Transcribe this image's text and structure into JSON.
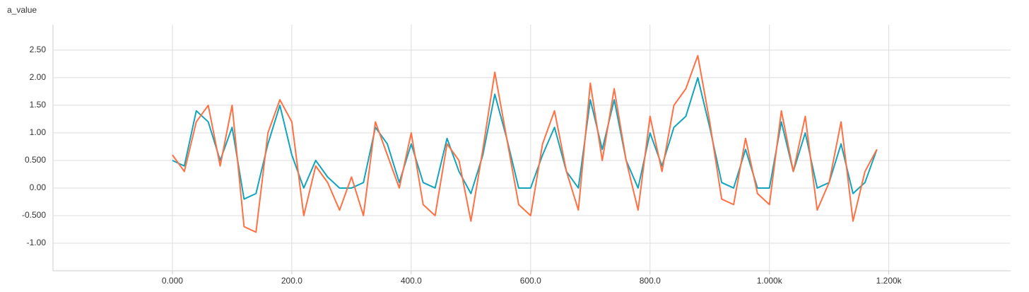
{
  "chart_data": {
    "type": "line",
    "title": "a_value",
    "x": [
      0,
      20,
      40,
      60,
      80,
      100,
      120,
      140,
      160,
      180,
      200,
      220,
      240,
      260,
      280,
      300,
      320,
      340,
      360,
      380,
      400,
      420,
      440,
      460,
      480,
      500,
      520,
      540,
      560,
      580,
      600,
      620,
      640,
      660,
      680,
      700,
      720,
      740,
      760,
      780,
      800,
      820,
      840,
      860,
      880,
      900,
      920,
      940,
      960,
      980,
      1000,
      1020,
      1040,
      1060,
      1080,
      1100,
      1120,
      1140,
      1160,
      1180
    ],
    "series": [
      {
        "color": "#12a4bd",
        "values": [
          0.5,
          0.4,
          1.4,
          1.2,
          0.5,
          1.1,
          -0.2,
          -0.1,
          0.8,
          1.5,
          0.6,
          0.0,
          0.5,
          0.2,
          0.0,
          0.0,
          0.1,
          1.1,
          0.8,
          0.1,
          0.8,
          0.1,
          0.0,
          0.9,
          0.3,
          -0.1,
          0.6,
          1.7,
          0.9,
          0.0,
          0.0,
          0.6,
          1.1,
          0.3,
          0.0,
          1.6,
          0.7,
          1.6,
          0.5,
          0.0,
          1.0,
          0.4,
          1.1,
          1.3,
          2.0,
          1.1,
          0.1,
          0.0,
          0.7,
          0.0,
          0.0,
          1.2,
          0.3,
          1.0,
          0.0,
          0.1,
          0.8,
          -0.1,
          0.1,
          0.7
        ]
      },
      {
        "color": "#ff7043",
        "values": [
          0.6,
          0.3,
          1.2,
          1.5,
          0.4,
          1.5,
          -0.7,
          -0.8,
          1.0,
          1.6,
          1.2,
          -0.5,
          0.4,
          0.1,
          -0.4,
          0.2,
          -0.5,
          1.2,
          0.6,
          0.0,
          1.0,
          -0.3,
          -0.5,
          0.8,
          0.5,
          -0.6,
          0.7,
          2.1,
          0.9,
          -0.3,
          -0.5,
          0.8,
          1.4,
          0.3,
          -0.4,
          1.9,
          0.5,
          1.8,
          0.5,
          -0.4,
          1.3,
          0.3,
          1.5,
          1.8,
          2.4,
          1.2,
          -0.2,
          -0.3,
          0.9,
          -0.1,
          -0.3,
          1.4,
          0.3,
          1.3,
          -0.4,
          0.1,
          1.2,
          -0.6,
          0.3,
          0.7
        ]
      }
    ],
    "xlim": [
      -200,
      1404
    ],
    "ylim": [
      -1.5,
      2.96
    ],
    "xticks": [
      {
        "value": 0,
        "label": "0.000"
      },
      {
        "value": 200,
        "label": "200.0"
      },
      {
        "value": 400,
        "label": "400.0"
      },
      {
        "value": 600,
        "label": "600.0"
      },
      {
        "value": 800,
        "label": "800.0"
      },
      {
        "value": 1000,
        "label": "1.000k"
      },
      {
        "value": 1200,
        "label": "1.200k"
      }
    ],
    "yticks": [
      {
        "value": 2.5,
        "label": "2.50"
      },
      {
        "value": 2,
        "label": "2.00"
      },
      {
        "value": 1.5,
        "label": "1.50"
      },
      {
        "value": 1,
        "label": "1.00"
      },
      {
        "value": 0.5,
        "label": "0.500"
      },
      {
        "value": 0,
        "label": "0.00"
      },
      {
        "value": -0.5,
        "label": "-0.500"
      },
      {
        "value": -1,
        "label": "-1.00"
      }
    ],
    "grid": true
  }
}
